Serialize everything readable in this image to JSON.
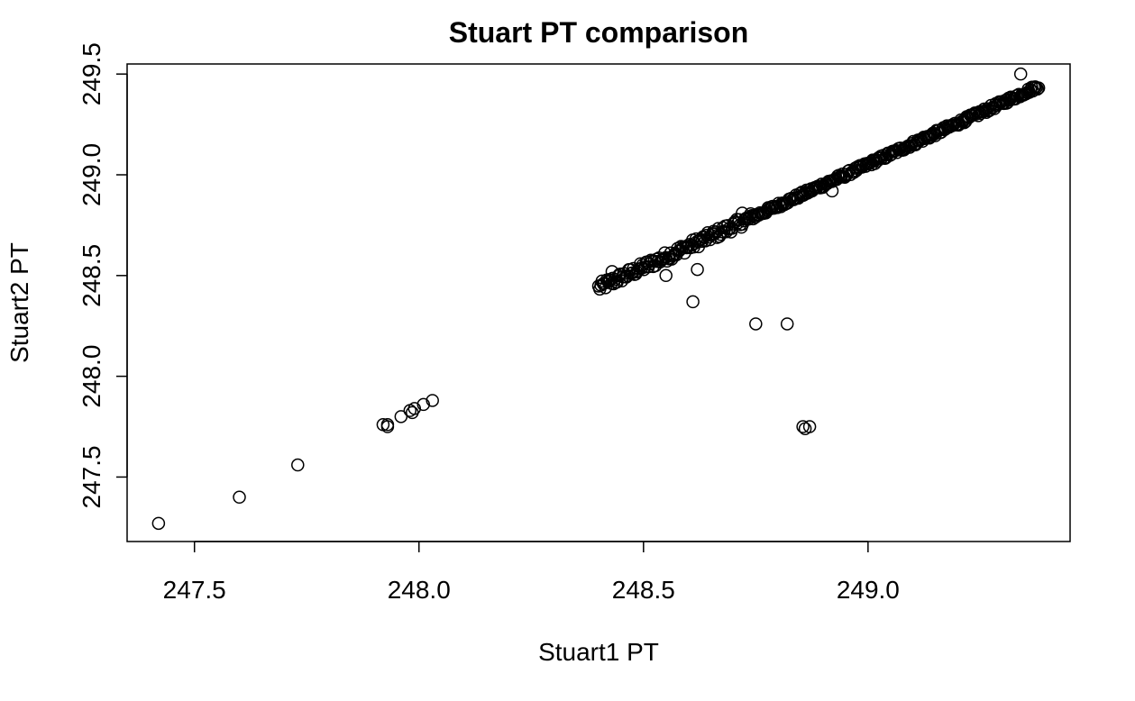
{
  "chart_data": {
    "type": "scatter",
    "title": "Stuart PT comparison",
    "xlabel": "Stuart1 PT",
    "ylabel": "Stuart2 PT",
    "xlim": [
      247.35,
      249.45
    ],
    "ylim": [
      247.18,
      249.55
    ],
    "x_ticks": [
      247.5,
      248.0,
      248.5,
      249.0
    ],
    "x_tick_labels": [
      "247.5",
      "248.0",
      "248.5",
      "249.0"
    ],
    "y_ticks": [
      247.5,
      248.0,
      248.5,
      249.0,
      249.5
    ],
    "y_tick_labels": [
      "247.5",
      "248.0",
      "248.5",
      "249.0",
      "249.5"
    ],
    "grid": false,
    "marker": "open-circle",
    "main_trend": {
      "x_start": 248.4,
      "y_start": 248.44,
      "x_end": 249.38,
      "y_end": 249.44,
      "point_count": 380
    },
    "points": [
      {
        "x": 247.42,
        "y": 247.27
      },
      {
        "x": 247.6,
        "y": 247.4
      },
      {
        "x": 247.73,
        "y": 247.56
      },
      {
        "x": 247.93,
        "y": 247.76
      },
      {
        "x": 247.93,
        "y": 247.75
      },
      {
        "x": 247.92,
        "y": 247.76
      },
      {
        "x": 247.96,
        "y": 247.8
      },
      {
        "x": 247.98,
        "y": 247.83
      },
      {
        "x": 247.99,
        "y": 247.84
      },
      {
        "x": 247.985,
        "y": 247.82
      },
      {
        "x": 248.01,
        "y": 247.86
      },
      {
        "x": 248.03,
        "y": 247.88
      },
      {
        "x": 248.61,
        "y": 248.37
      },
      {
        "x": 248.75,
        "y": 248.26
      },
      {
        "x": 248.82,
        "y": 248.26
      },
      {
        "x": 248.855,
        "y": 247.75
      },
      {
        "x": 248.86,
        "y": 247.74
      },
      {
        "x": 248.87,
        "y": 247.75
      },
      {
        "x": 248.92,
        "y": 248.92
      },
      {
        "x": 249.34,
        "y": 249.5
      },
      {
        "x": 248.62,
        "y": 248.53
      },
      {
        "x": 248.72,
        "y": 248.81
      },
      {
        "x": 248.43,
        "y": 248.52
      },
      {
        "x": 248.55,
        "y": 248.5
      }
    ]
  }
}
